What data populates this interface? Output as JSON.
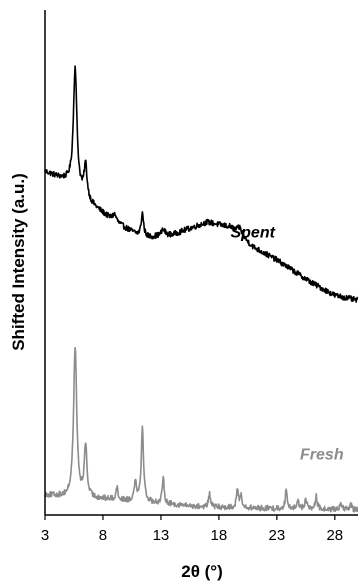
{
  "chart_data": {
    "type": "line",
    "title": "",
    "xlabel": "2θ (°)",
    "ylabel": "Shifted Intensity (a.u.)",
    "xlim": [
      3,
      30
    ],
    "ylim": [
      0,
      100
    ],
    "xticks": [
      3,
      8,
      13,
      18,
      23,
      28
    ],
    "yticks": [],
    "grid": false,
    "legend": "none",
    "series": [
      {
        "name": "Spent",
        "color": "#000000",
        "label_position": "x=19, y=55",
        "baseline_points": [
          [
            3,
            68.0
          ],
          [
            5,
            66.0
          ],
          [
            7,
            61.5
          ],
          [
            9,
            58.0
          ],
          [
            11,
            55.5
          ],
          [
            12,
            55.0
          ],
          [
            14,
            55.5
          ],
          [
            17,
            58.0
          ],
          [
            19,
            57.0
          ],
          [
            21,
            53.0
          ],
          [
            23,
            50.5
          ],
          [
            26,
            46.0
          ],
          [
            28,
            43.5
          ],
          [
            30,
            42.5
          ]
        ],
        "peaks": [
          [
            5.6,
            24.0,
            0.18
          ],
          [
            6.5,
            6.5,
            0.15
          ],
          [
            9.0,
            1.5,
            0.2
          ],
          [
            11.4,
            4.5,
            0.12
          ],
          [
            13.2,
            1.2,
            0.2
          ],
          [
            19.8,
            1.5,
            0.25
          ]
        ]
      },
      {
        "name": "Fresh",
        "color": "#8c8c8c",
        "label_position": "x=25, y=11",
        "baseline_points": [
          [
            3,
            4.0
          ],
          [
            5,
            3.5
          ],
          [
            8,
            3.2
          ],
          [
            12,
            2.5
          ],
          [
            16,
            1.7
          ],
          [
            20,
            1.4
          ],
          [
            25,
            1.2
          ],
          [
            30,
            1.0
          ]
        ],
        "peaks": [
          [
            5.6,
            30.0,
            0.16
          ],
          [
            6.5,
            10.5,
            0.13
          ],
          [
            9.2,
            2.5,
            0.1
          ],
          [
            10.8,
            4.0,
            0.12
          ],
          [
            11.4,
            14.5,
            0.12
          ],
          [
            13.2,
            5.0,
            0.1
          ],
          [
            17.2,
            2.5,
            0.1
          ],
          [
            19.6,
            3.5,
            0.1
          ],
          [
            19.9,
            2.5,
            0.1
          ],
          [
            23.8,
            3.5,
            0.1
          ],
          [
            24.8,
            2.0,
            0.1
          ],
          [
            25.5,
            2.0,
            0.1
          ],
          [
            26.4,
            2.5,
            0.1
          ],
          [
            28.5,
            1.5,
            0.1
          ],
          [
            29.4,
            1.0,
            0.1
          ]
        ]
      }
    ]
  }
}
